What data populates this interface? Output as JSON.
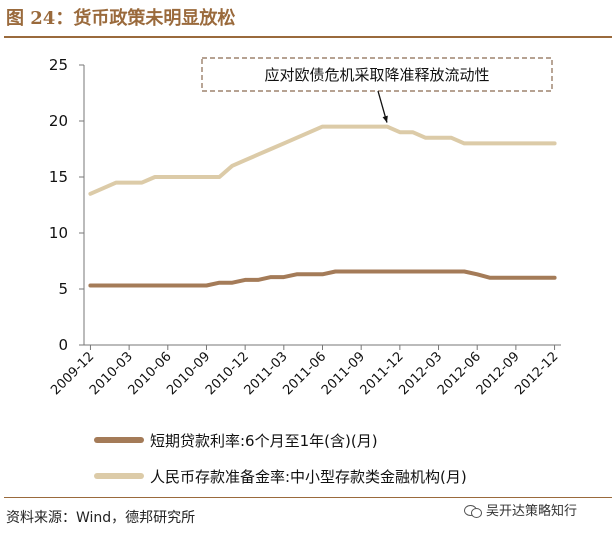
{
  "figure": {
    "title": "图 24：货币政策未明显放松",
    "source": "资料来源：Wind，德邦研究所",
    "watermark": "吴开达策略知行",
    "watermark_icon": "wechat-icon"
  },
  "chart_data": {
    "type": "line",
    "title": "",
    "xlabel": "",
    "ylabel": "",
    "ylim": [
      0,
      25
    ],
    "yticks": [
      0,
      5,
      10,
      15,
      20,
      25
    ],
    "grid": false,
    "legend_position": "bottom",
    "x_labels": [
      "2009-12",
      "2010-03",
      "2010-06",
      "2010-09",
      "2010-12",
      "2011-03",
      "2011-06",
      "2011-09",
      "2011-12",
      "2012-03",
      "2012-06",
      "2012-09",
      "2012-12"
    ],
    "x": [
      "2009-12",
      "2010-01",
      "2010-02",
      "2010-03",
      "2010-04",
      "2010-05",
      "2010-06",
      "2010-07",
      "2010-08",
      "2010-09",
      "2010-10",
      "2010-11",
      "2010-12",
      "2011-01",
      "2011-02",
      "2011-03",
      "2011-04",
      "2011-05",
      "2011-06",
      "2011-07",
      "2011-08",
      "2011-09",
      "2011-10",
      "2011-11",
      "2011-12",
      "2012-01",
      "2012-02",
      "2012-03",
      "2012-04",
      "2012-05",
      "2012-06",
      "2012-07",
      "2012-08",
      "2012-09",
      "2012-10",
      "2012-11",
      "2012-12"
    ],
    "series": [
      {
        "name": "短期贷款利率:6个月至1年(含)(月)",
        "color": "#a47b58",
        "values": [
          5.31,
          5.31,
          5.31,
          5.31,
          5.31,
          5.31,
          5.31,
          5.31,
          5.31,
          5.31,
          5.56,
          5.56,
          5.81,
          5.81,
          6.06,
          6.06,
          6.31,
          6.31,
          6.31,
          6.56,
          6.56,
          6.56,
          6.56,
          6.56,
          6.56,
          6.56,
          6.56,
          6.56,
          6.56,
          6.56,
          6.31,
          6.0,
          6.0,
          6.0,
          6.0,
          6.0,
          6.0
        ]
      },
      {
        "name": "人民币存款准备金率:中小型存款类金融机构(月)",
        "color": "#dccba8",
        "values": [
          13.5,
          14.0,
          14.5,
          14.5,
          14.5,
          15.0,
          15.0,
          15.0,
          15.0,
          15.0,
          15.0,
          16.0,
          16.5,
          17.0,
          17.5,
          18.0,
          18.5,
          19.0,
          19.5,
          19.5,
          19.5,
          19.5,
          19.5,
          19.5,
          19.0,
          19.0,
          18.5,
          18.5,
          18.5,
          18.0,
          18.0,
          18.0,
          18.0,
          18.0,
          18.0,
          18.0,
          18.0
        ]
      }
    ],
    "annotation": {
      "text": "应对欧债危机采取降准释放流动性",
      "target_x": "2011-11",
      "target_y": 19.5
    }
  }
}
